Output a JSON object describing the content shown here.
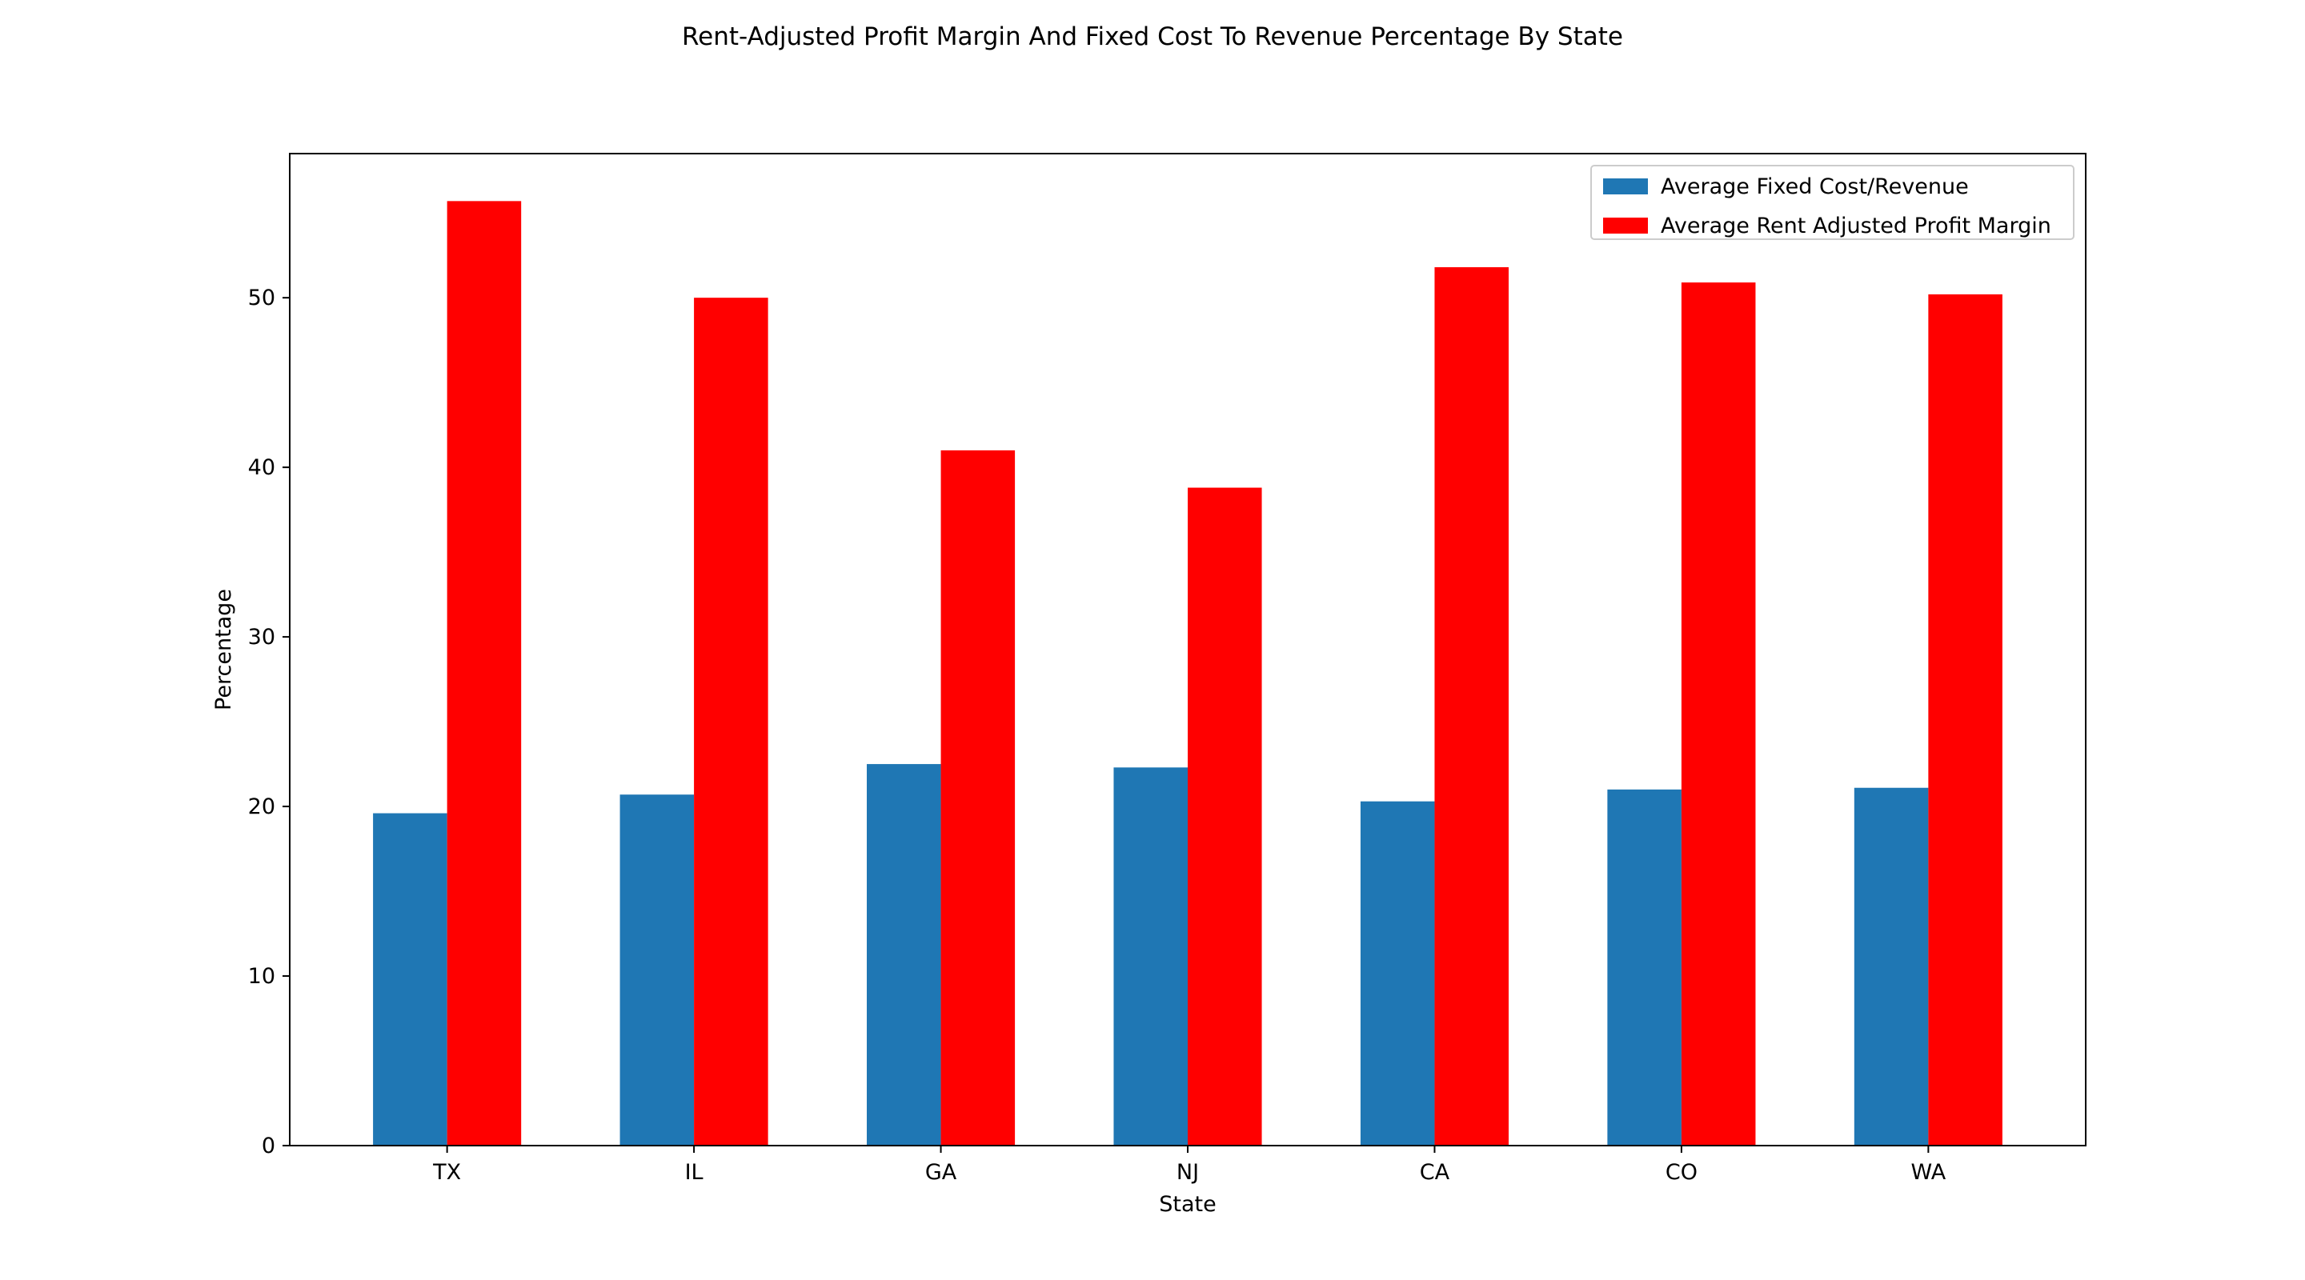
{
  "chart_data": {
    "type": "bar",
    "title": "Rent-Adjusted Profit Margin And Fixed Cost To Revenue Percentage By State",
    "xlabel": "State",
    "ylabel": "Percentage",
    "categories": [
      "TX",
      "IL",
      "GA",
      "NJ",
      "CA",
      "CO",
      "WA"
    ],
    "series": [
      {
        "name": "Average Fixed Cost/Revenue",
        "color": "#1f77b4",
        "values": [
          19.6,
          20.7,
          22.5,
          22.3,
          20.3,
          21.0,
          21.1
        ]
      },
      {
        "name": "Average Rent Adjusted Profit Margin",
        "color": "#ff0000",
        "values": [
          55.7,
          50.0,
          41.0,
          38.8,
          51.8,
          50.9,
          50.2
        ]
      }
    ],
    "ylim": [
      0,
      58.5
    ],
    "yticks": [
      0,
      10,
      20,
      30,
      40,
      50
    ],
    "grid": false,
    "legend_position": "top-right"
  }
}
